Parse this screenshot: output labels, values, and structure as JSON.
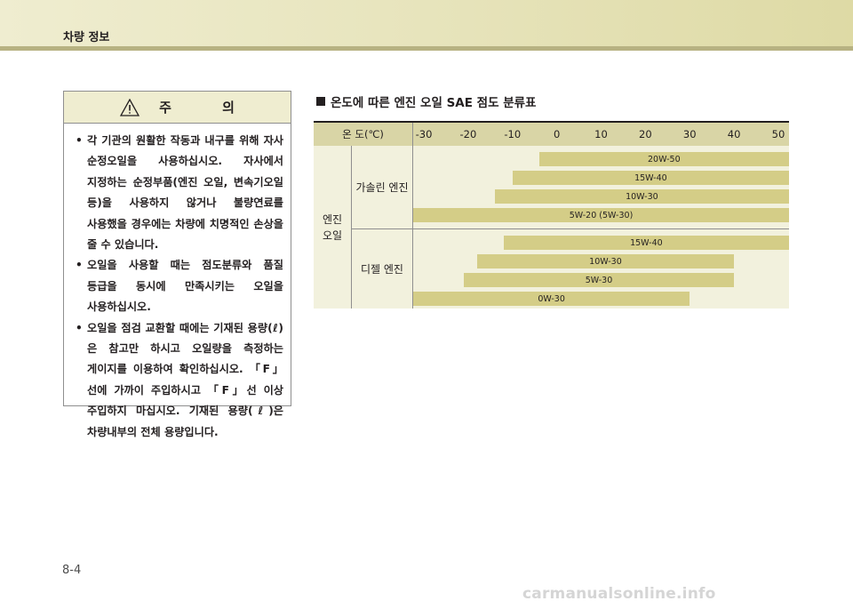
{
  "header": {
    "title": "차량 정보"
  },
  "caution": {
    "title": "주 의",
    "items": [
      "각 기관의 원활한 작동과 내구를 위해 자사 순정오일을 사용하십시오. 자사에서 지정하는 순정부품(엔진 오일, 변속기오일 등)을 사용하지 않거나 불량연료를 사용했을 경우에는 차량에 치명적인 손상을 줄 수 있습니다.",
      "오일을 사용할 때는 점도분류와 품질 등급을 동시에 만족시키는 오일을 사용하십시오.",
      "오일을 점검 교환할 때에는 기재된 용량(ℓ)은 참고만 하시고 오일량을 측정하는 게이지를 이용하여 확인하십시오. 「F」선에 가까이 주입하시고 「F」선 이상 주입하지 마십시오. 기재된 용량(ℓ)은 차량내부의 전체 용량입니다."
    ]
  },
  "section": {
    "title": "온도에 따른 엔진 오일 SAE 점도 분류표"
  },
  "chart_data": {
    "type": "range-bar",
    "header_label": "온  도(℃)",
    "row_header": "엔진 오일",
    "x_ticks": [
      -30,
      -20,
      -10,
      0,
      10,
      20,
      30,
      40,
      50
    ],
    "groups": [
      {
        "name": "가솔린 엔진",
        "bars": [
          {
            "label": "20W-50",
            "from": -4,
            "to": 50
          },
          {
            "label": "15W-40",
            "from": -10,
            "to": 50
          },
          {
            "label": "10W-30",
            "from": -14,
            "to": 50
          },
          {
            "label": "5W-20 (5W-30)",
            "from": -30,
            "to": 50
          }
        ]
      },
      {
        "name": "디젤 엔진",
        "bars": [
          {
            "label": "15W-40",
            "from": -12,
            "to": 50
          },
          {
            "label": "10W-30",
            "from": -18,
            "to": 40
          },
          {
            "label": "5W-30",
            "from": -21,
            "to": 40
          },
          {
            "label": "0W-30",
            "from": -30,
            "to": 30
          }
        ]
      }
    ]
  },
  "page": {
    "number": "8-4"
  },
  "watermark": "carmanualsonline.info",
  "colors": {
    "header_band": "#e7e4bc",
    "bar": "#d4cd87",
    "table_bg": "#f2f1dd"
  }
}
